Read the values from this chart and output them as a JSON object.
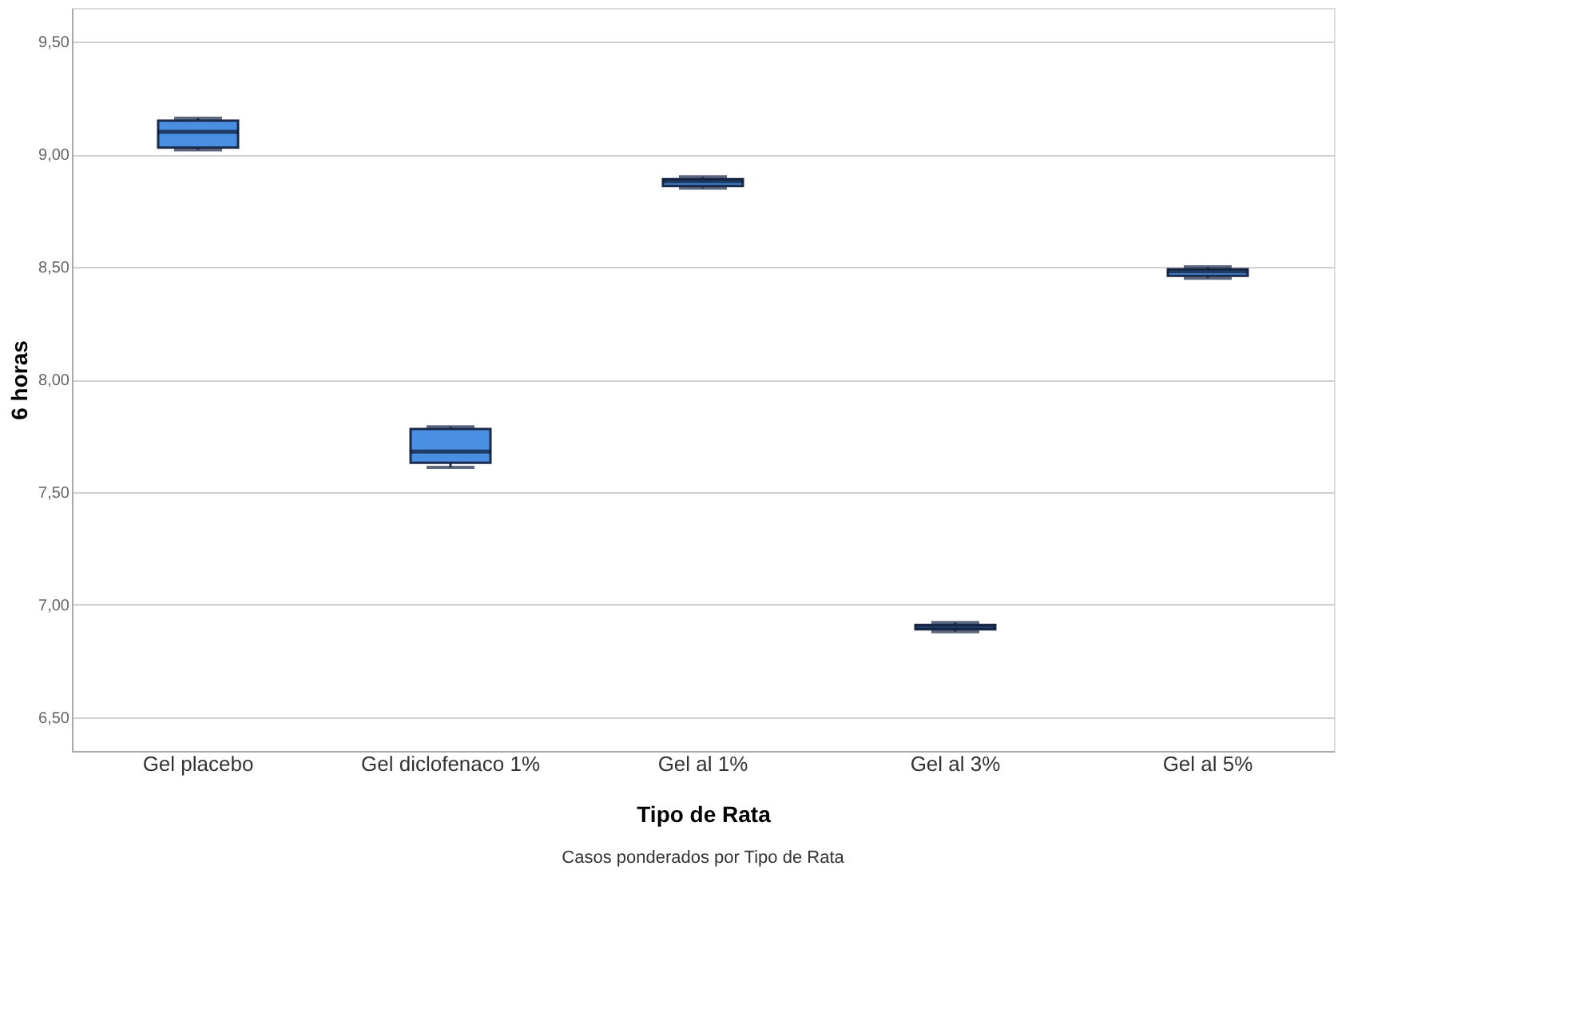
{
  "chart_data": {
    "type": "box",
    "xlabel": "Tipo de Rata",
    "ylabel": "6 horas",
    "categories": [
      "Gel placebo",
      "Gel diclofenaco 1%",
      "Gel al 1%",
      "Gel al 3%",
      "Gel al 5%"
    ],
    "boxes": [
      {
        "low": 9.02,
        "q1": 9.03,
        "median": 9.1,
        "q3": 9.15,
        "high": 9.16
      },
      {
        "low": 7.61,
        "q1": 7.63,
        "median": 7.68,
        "q3": 7.78,
        "high": 7.79
      },
      {
        "low": 8.85,
        "q1": 8.86,
        "median": 8.88,
        "q3": 8.89,
        "high": 8.9
      },
      {
        "low": 6.88,
        "q1": 6.89,
        "median": 6.9,
        "q3": 6.91,
        "high": 6.92
      },
      {
        "low": 8.45,
        "q1": 8.46,
        "median": 8.48,
        "q3": 8.49,
        "high": 8.5
      }
    ],
    "color": "#4a90e2",
    "ylim": [
      6.35,
      9.65
    ],
    "yticks": [
      {
        "value": 6.5,
        "label": "6,50"
      },
      {
        "value": 7.0,
        "label": "7,00"
      },
      {
        "value": 7.5,
        "label": "7,50"
      },
      {
        "value": 8.0,
        "label": "8,00"
      },
      {
        "value": 8.5,
        "label": "8,50"
      },
      {
        "value": 9.0,
        "label": "9,00"
      },
      {
        "value": 9.5,
        "label": "9,50"
      }
    ],
    "grid": "y",
    "annotations": [
      "Casos ponderados por Tipo de Rata"
    ]
  }
}
